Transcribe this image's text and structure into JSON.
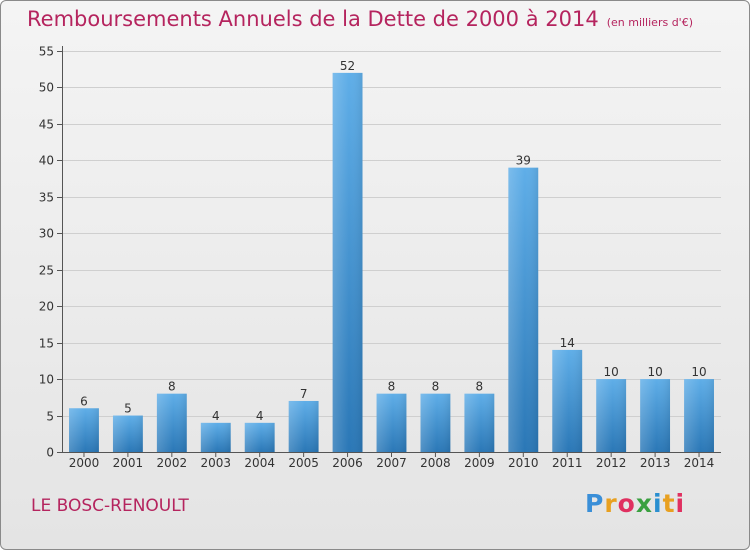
{
  "title": "Remboursements Annuels de la Dette de 2000 à 2014",
  "unit": "(en milliers d'€)",
  "commune": "LE BOSC-RENOULT",
  "logo": {
    "letters": [
      "P",
      "r",
      "o",
      "x",
      "i",
      "t",
      "i"
    ],
    "colors": [
      "#3a8fd8",
      "#e8a020",
      "#e03060",
      "#3aa040",
      "#2a8fd0",
      "#e8a020",
      "#e03060"
    ]
  },
  "colors": {
    "title": "#b5245e",
    "bar_top": "#5faee8",
    "bar_bottom": "#2a77b6",
    "grid": "#cfcfcf"
  },
  "chart_data": {
    "type": "bar",
    "title": "Remboursements Annuels de la Dette de 2000 à 2014",
    "subtitle": "(en milliers d'€)",
    "xlabel": "",
    "ylabel": "",
    "categories": [
      "2000",
      "2001",
      "2002",
      "2003",
      "2004",
      "2005",
      "2006",
      "2007",
      "2008",
      "2009",
      "2010",
      "2011",
      "2012",
      "2013",
      "2014"
    ],
    "values": [
      6,
      5,
      8,
      4,
      4,
      7,
      52,
      8,
      8,
      8,
      39,
      14,
      10,
      10,
      10
    ],
    "ylim": [
      0,
      55
    ],
    "yticks": [
      0,
      5,
      10,
      15,
      20,
      25,
      30,
      35,
      40,
      45,
      50,
      55
    ],
    "grid": true,
    "data_labels": true
  }
}
